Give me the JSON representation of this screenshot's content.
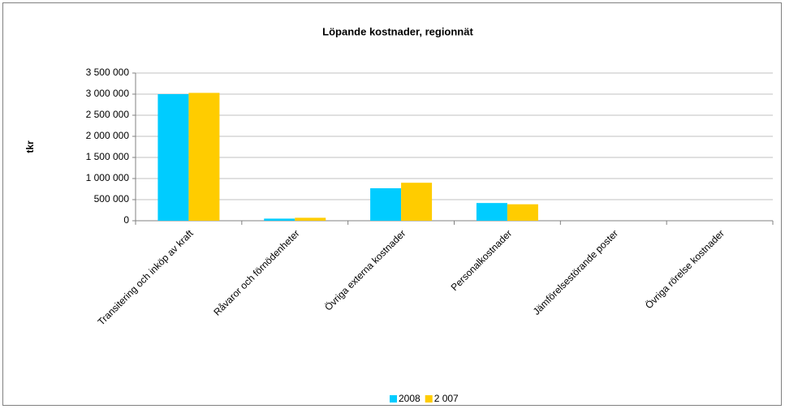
{
  "chart_data": {
    "type": "bar",
    "title": "Löpande kostnader, regionnät",
    "y_label": "tkr",
    "categories": [
      "Transitering och inköp av kraft",
      "Råvaror och förnödenheter",
      "Övriga externa kostnader",
      "Personalkostnader",
      "Jämförelsestörande poster",
      "Övriga rörelse kostnader"
    ],
    "series": [
      {
        "name": "2008",
        "color": "#00ccff",
        "values": [
          3000000,
          50000,
          770000,
          420000,
          0,
          0
        ]
      },
      {
        "name": "2 007",
        "color": "#ffcc00",
        "values": [
          3030000,
          70000,
          900000,
          390000,
          0,
          0
        ]
      }
    ],
    "ylim": [
      0,
      3500000
    ],
    "yticks": [
      0,
      {
        "value": 500000,
        "label": "500 000"
      },
      {
        "value": 1000000,
        "label": "1 000 000"
      },
      {
        "value": 1500000,
        "label": "1 500 000"
      },
      {
        "value": 2000000,
        "label": "2 000 000"
      },
      {
        "value": 2500000,
        "label": "2 500 000"
      },
      {
        "value": 3000000,
        "label": "3 000 000"
      },
      {
        "value": 3500000,
        "label": "3 500 000"
      }
    ],
    "grid": true,
    "legend": "bottom"
  }
}
